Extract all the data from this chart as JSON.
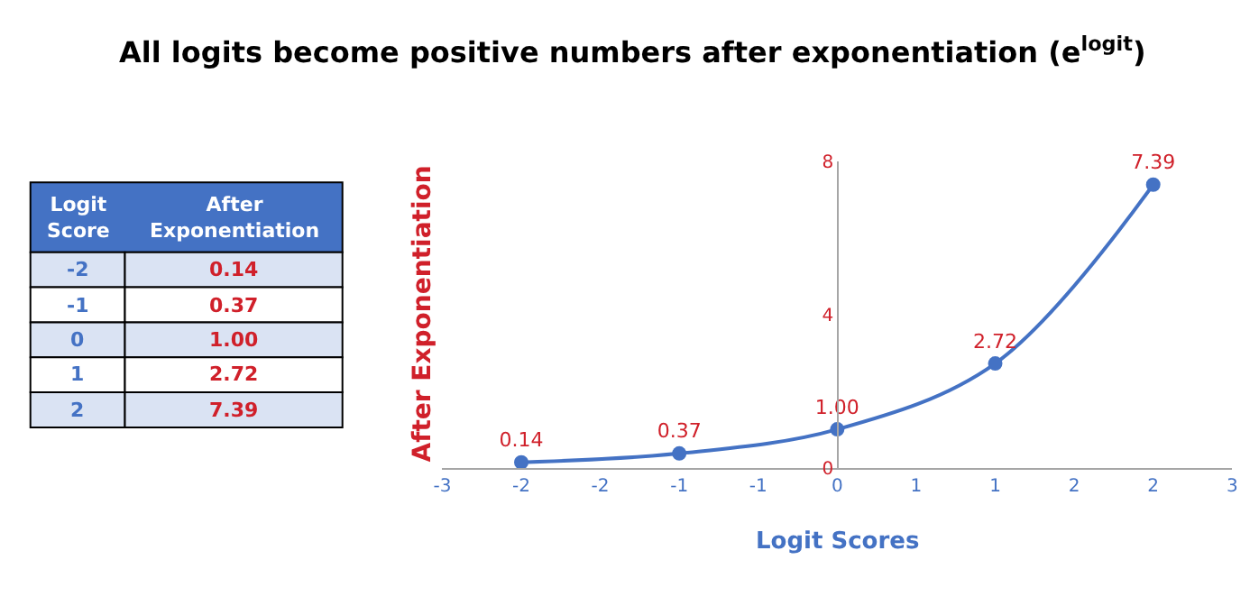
{
  "chart_data": {
    "type": "line",
    "title": "All logits become positive numbers after exponentiation (e$^{logit}$)",
    "xlabel": "Logit Scores",
    "ylabel": "After Exponentiation",
    "x": [
      -2,
      -1,
      0,
      1,
      2
    ],
    "series": [
      {
        "color": "#4472c4",
        "values": [
          0.14,
          0.37,
          1.0,
          2.72,
          7.39
        ],
        "value_labels": [
          "0.14",
          "0.37",
          "1.00",
          "2.72",
          "7.39"
        ]
      }
    ],
    "xlim": [
      -2.5,
      2.5
    ],
    "xticks": [
      {
        "value": -2.5,
        "label": "-3"
      },
      {
        "value": -2,
        "label": "-2"
      },
      {
        "value": -1.5,
        "label": "-2"
      },
      {
        "value": -1,
        "label": "-1"
      },
      {
        "value": -0.5,
        "label": "-1"
      },
      {
        "value": 0,
        "label": "0"
      },
      {
        "value": 0.5,
        "label": "1"
      },
      {
        "value": 1,
        "label": "1"
      },
      {
        "value": 1.5,
        "label": "2"
      },
      {
        "value": 2,
        "label": "2"
      },
      {
        "value": 2.5,
        "label": "3"
      }
    ],
    "ylim": [
      0,
      8
    ],
    "yticks": [
      0,
      4,
      8
    ],
    "annotations": [
      "Logit Score",
      "After Exponentiation",
      "-2",
      "0.14",
      "-1",
      "0.37",
      "0",
      "1.00",
      "1",
      "2.72",
      "2",
      "7.39"
    ],
    "marker": "circle",
    "line_style": "solid"
  }
}
